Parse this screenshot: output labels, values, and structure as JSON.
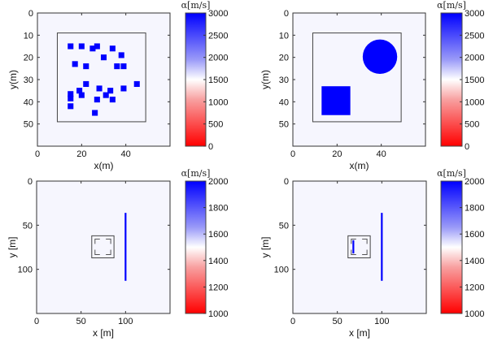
{
  "colors": {
    "min": "#ff0000",
    "mid": "#ffffff",
    "max": "#0000ff",
    "background": "#f6f6fe",
    "frame": "#555555"
  },
  "chart_data": [
    {
      "type": "heatmap",
      "xlabel": "x(m)",
      "ylabel": "y(m)",
      "colorbar_label": "α[m/s]",
      "xlim": [
        0,
        60
      ],
      "ylim": [
        0,
        60
      ],
      "y_reversed": true,
      "xticks": [
        0,
        20,
        40
      ],
      "yticks": [
        0,
        10,
        20,
        30,
        40,
        50
      ],
      "clim": [
        0,
        3000
      ],
      "colorbar_ticks": [
        3000,
        2500,
        2000,
        1500,
        1000,
        500,
        0
      ],
      "background_value": 1500,
      "region_box": [
        9,
        9,
        49,
        49
      ],
      "squares": {
        "value": 3000,
        "size": 2.6,
        "centers": [
          [
            15,
            15
          ],
          [
            20,
            15
          ],
          [
            25,
            16
          ],
          [
            27,
            15
          ],
          [
            34,
            16
          ],
          [
            38,
            19
          ],
          [
            30,
            20
          ],
          [
            17,
            23
          ],
          [
            22,
            24
          ],
          [
            36,
            24
          ],
          [
            39,
            24
          ],
          [
            22,
            32
          ],
          [
            45,
            32
          ],
          [
            19,
            35
          ],
          [
            20,
            37
          ],
          [
            15,
            36.5
          ],
          [
            15,
            38.5
          ],
          [
            28,
            34
          ],
          [
            33,
            35
          ],
          [
            31,
            37
          ],
          [
            27,
            39
          ],
          [
            34,
            39
          ],
          [
            39,
            34
          ],
          [
            15,
            42
          ],
          [
            26,
            45
          ]
        ]
      }
    },
    {
      "type": "heatmap",
      "xlabel": "x(m)",
      "ylabel": "y(m)",
      "colorbar_label": "α[m/s]",
      "xlim": [
        0,
        60
      ],
      "ylim": [
        0,
        60
      ],
      "y_reversed": true,
      "xticks": [
        0,
        20,
        40
      ],
      "yticks": [
        0,
        10,
        20,
        30,
        40,
        50
      ],
      "clim": [
        0,
        3000
      ],
      "colorbar_ticks": [
        3000,
        2500,
        2000,
        1500,
        1000,
        500,
        0
      ],
      "background_value": 1500,
      "region_box": [
        9,
        9,
        49,
        49
      ],
      "rects": [
        {
          "value": 3000,
          "x0": 13,
          "y0": 33,
          "x1": 26,
          "y1": 46
        }
      ],
      "circles": [
        {
          "value": 3000,
          "cx": 39.4,
          "cy": 19.7,
          "r": 7.8
        }
      ]
    },
    {
      "type": "heatmap",
      "xlabel": "x [m]",
      "ylabel": "y [m]",
      "colorbar_label": "α[m/s]",
      "xlim": [
        0,
        150
      ],
      "ylim": [
        0,
        150
      ],
      "y_reversed": true,
      "xticks": [
        0,
        50,
        100
      ],
      "yticks": [
        0,
        50,
        100
      ],
      "clim": [
        1000,
        2000
      ],
      "colorbar_ticks": [
        2000,
        1800,
        1600,
        1400,
        1200,
        1000
      ],
      "background_value": 1500,
      "region_box": [
        62,
        62,
        87,
        87
      ],
      "rects": [
        {
          "value": 2000,
          "x0": 99,
          "y0": 36,
          "x1": 101,
          "y1": 113
        }
      ]
    },
    {
      "type": "heatmap",
      "xlabel": "x [m]",
      "ylabel": "y [m]",
      "colorbar_label": "α[m/s]",
      "xlim": [
        0,
        150
      ],
      "ylim": [
        0,
        150
      ],
      "y_reversed": true,
      "xticks": [
        0,
        50,
        100
      ],
      "yticks": [
        0,
        50,
        100
      ],
      "clim": [
        1000,
        2000
      ],
      "colorbar_ticks": [
        2000,
        1800,
        1600,
        1400,
        1200,
        1000
      ],
      "background_value": 1500,
      "region_box": [
        62,
        62,
        87,
        87
      ],
      "rects": [
        {
          "value": 2000,
          "x0": 99,
          "y0": 36,
          "x1": 101,
          "y1": 113
        },
        {
          "value": 2000,
          "x0": 67,
          "y0": 67,
          "x1": 69,
          "y1": 82
        }
      ]
    }
  ]
}
